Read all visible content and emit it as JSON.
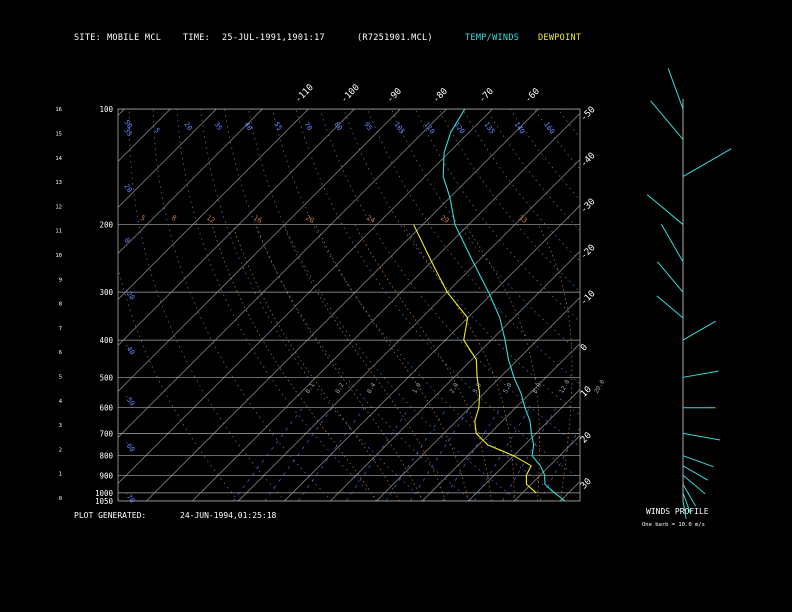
{
  "header": {
    "site_label": "SITE:",
    "site_value": "MOBILE MCL",
    "time_label": "TIME:",
    "time_value": "25-JUL-1991,1901:17",
    "file": "(R7251901.MCL)",
    "legend_temp": "TEMP/WINDS",
    "legend_dew": "DEWPOINT"
  },
  "footer": {
    "generated_label": "PLOT GENERATED:",
    "generated_value": "24-JUN-1994,01:25:18",
    "winds_title": "WINDS PROFILE",
    "barb_note": "One barb = 10.0 m/s"
  },
  "colors": {
    "temp": "#33dddd",
    "dew": "#eeee22",
    "grid": "#aaaaaa",
    "mixing": "#5577ff",
    "theta_e": "#cc7733"
  },
  "chart_data": {
    "type": "line",
    "pressure_ticks": [
      "100",
      "200",
      "300",
      "400",
      "500",
      "600",
      "700",
      "800",
      "900",
      "1000",
      "1050"
    ],
    "height_ticks": [
      "0",
      "1",
      "2",
      "3",
      "4",
      "5",
      "6",
      "7",
      "8",
      "9",
      "10",
      "11",
      "12",
      "13",
      "14",
      "15",
      "16"
    ],
    "temp_ticks": [
      "-110",
      "-100",
      "-90",
      "-80",
      "-70",
      "-60",
      "-50",
      "-40",
      "-30",
      "-20",
      "-10",
      "0",
      "10",
      "20",
      "30"
    ],
    "mixing_ratio_labels": [
      "0.1",
      "0.2",
      "0.4",
      "1.0",
      "2.0",
      "3.0",
      "5.0",
      "8.0",
      "12.0",
      "20.0"
    ],
    "theta_labels": [
      "35",
      "5",
      "20",
      "35",
      "40",
      "55",
      "70",
      "80",
      "95",
      "105",
      "110",
      "120",
      "135",
      "140",
      "160"
    ],
    "theta_e_labels": [
      "5",
      "8",
      "12",
      "16",
      "20",
      "24",
      "29",
      "33"
    ],
    "temperature": [
      {
        "p": 1050,
        "t": 31
      },
      {
        "p": 1000,
        "t": 27
      },
      {
        "p": 950,
        "t": 23
      },
      {
        "p": 900,
        "t": 21
      },
      {
        "p": 850,
        "t": 18
      },
      {
        "p": 800,
        "t": 14
      },
      {
        "p": 750,
        "t": 12
      },
      {
        "p": 700,
        "t": 9
      },
      {
        "p": 650,
        "t": 6
      },
      {
        "p": 600,
        "t": 2
      },
      {
        "p": 550,
        "t": -2
      },
      {
        "p": 500,
        "t": -7
      },
      {
        "p": 450,
        "t": -12
      },
      {
        "p": 400,
        "t": -17
      },
      {
        "p": 350,
        "t": -23
      },
      {
        "p": 300,
        "t": -31
      },
      {
        "p": 250,
        "t": -41
      },
      {
        "p": 200,
        "t": -53
      },
      {
        "p": 170,
        "t": -60
      },
      {
        "p": 150,
        "t": -66
      },
      {
        "p": 130,
        "t": -71
      },
      {
        "p": 115,
        "t": -74
      },
      {
        "p": 100,
        "t": -76
      }
    ],
    "dewpoint": [
      {
        "p": 1000,
        "t": 23
      },
      {
        "p": 950,
        "t": 19
      },
      {
        "p": 900,
        "t": 17
      },
      {
        "p": 850,
        "t": 16
      },
      {
        "p": 800,
        "t": 10
      },
      {
        "p": 750,
        "t": 2
      },
      {
        "p": 700,
        "t": -3
      },
      {
        "p": 650,
        "t": -6
      },
      {
        "p": 600,
        "t": -8
      },
      {
        "p": 550,
        "t": -11
      },
      {
        "p": 500,
        "t": -15
      },
      {
        "p": 450,
        "t": -19
      },
      {
        "p": 400,
        "t": -26
      },
      {
        "p": 350,
        "t": -30
      },
      {
        "p": 300,
        "t": -40
      },
      {
        "p": 250,
        "t": -50
      },
      {
        "p": 200,
        "t": -62
      }
    ],
    "winds": [
      {
        "p": 1050,
        "dir": 190,
        "spd": 4
      },
      {
        "p": 1000,
        "dir": 200,
        "spd": 6
      },
      {
        "p": 950,
        "dir": 210,
        "spd": 8
      },
      {
        "p": 900,
        "dir": 230,
        "spd": 10
      },
      {
        "p": 850,
        "dir": 240,
        "spd": 10
      },
      {
        "p": 800,
        "dir": 250,
        "spd": 12
      },
      {
        "p": 700,
        "dir": 260,
        "spd": 15
      },
      {
        "p": 600,
        "dir": 270,
        "spd": 12
      },
      {
        "p": 500,
        "dir": 280,
        "spd": 14
      },
      {
        "p": 400,
        "dir": 300,
        "spd": 15
      },
      {
        "p": 350,
        "dir": 310,
        "spd": 13
      },
      {
        "p": 300,
        "dir": 320,
        "spd": 16
      },
      {
        "p": 250,
        "dir": 330,
        "spd": 18
      },
      {
        "p": 200,
        "dir": 310,
        "spd": 20
      },
      {
        "p": 150,
        "dir": 300,
        "spd": 25
      },
      {
        "p": 120,
        "dir": 320,
        "spd": 22
      },
      {
        "p": 100,
        "dir": 340,
        "spd": 18
      }
    ]
  }
}
